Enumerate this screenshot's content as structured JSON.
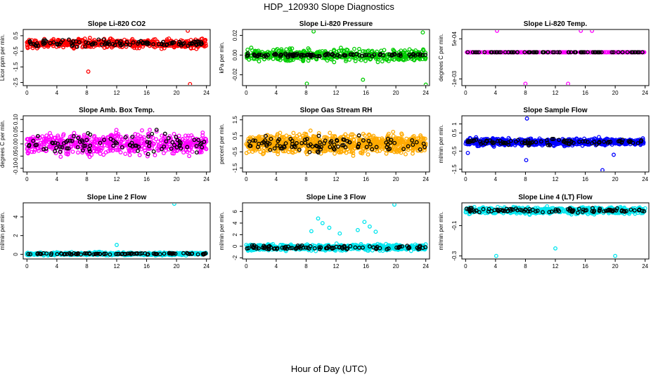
{
  "title": "HDP_120930  Slope Diagnostics",
  "xlabel": "Hour of Day (UTC)",
  "chart_data": [
    {
      "type": "scatter",
      "title": "Slope Li-820 CO2",
      "ylabel": "Licor ppm per min.",
      "color": "#ff0000",
      "ylim": [
        -2.7,
        0.9
      ],
      "yticks": [
        {
          "v": -2.5,
          "label": "-2.5"
        },
        {
          "v": -1.5,
          "label": "-1.5"
        },
        {
          "v": -0.5,
          "label": "-0.5"
        },
        {
          "v": 0.5,
          "label": "0.5"
        }
      ],
      "xlim": [
        -0.5,
        24.5
      ],
      "xticks": [
        0,
        4,
        8,
        12,
        16,
        20,
        24
      ],
      "bulk_center": 0.0,
      "bulk_spread": 0.27,
      "bulk_n": 500,
      "dark_n": 100,
      "dark_spread": 0.2,
      "outliers": [
        {
          "x": 8.2,
          "y": -1.8
        },
        {
          "x": 21.5,
          "y": 0.82
        },
        {
          "x": 21.8,
          "y": -2.6
        }
      ]
    },
    {
      "type": "scatter",
      "title": "Slope Li-820 Pressure",
      "ylabel": "kPa per min.",
      "color": "#00cc00",
      "ylim": [
        -0.031,
        0.026
      ],
      "yticks": [
        {
          "v": -0.02,
          "label": "-0.02"
        },
        {
          "v": 0.0,
          "label": "0.00"
        },
        {
          "v": 0.02,
          "label": "0.02"
        }
      ],
      "xlim": [
        -0.5,
        24.5
      ],
      "xticks": [
        0,
        4,
        8,
        12,
        16,
        20,
        24
      ],
      "bulk_center": 0.0,
      "bulk_spread": 0.006,
      "bulk_n": 450,
      "dark_n": 110,
      "dark_spread": 0.0015,
      "outliers": [
        {
          "x": 8.1,
          "y": -0.029
        },
        {
          "x": 15.6,
          "y": -0.025
        },
        {
          "x": 24.0,
          "y": -0.03
        },
        {
          "x": 9.0,
          "y": 0.024
        },
        {
          "x": 23.6,
          "y": 0.023
        }
      ]
    },
    {
      "type": "scatter",
      "title": "Slope Li-820 Temp.",
      "ylabel": "degrees C per min.",
      "color": "#ff00ff",
      "ylim": [
        -0.00125,
        0.00085
      ],
      "yticks": [
        {
          "v": -0.001,
          "label": "-1e-03"
        },
        {
          "v": 0.0005,
          "label": "5e-04"
        }
      ],
      "xlim": [
        -0.5,
        24.5
      ],
      "xticks": [
        0,
        4,
        8,
        12,
        16,
        20,
        24
      ],
      "bulk_center": 0.0,
      "bulk_spread": 0.0,
      "bulk_n": 300,
      "dark_n": 80,
      "dark_spread": 0.0,
      "outliers": [
        {
          "x": 4.2,
          "y": 0.0008
        },
        {
          "x": 8.0,
          "y": -0.00118
        },
        {
          "x": 13.7,
          "y": -0.00118
        },
        {
          "x": 16.9,
          "y": 0.0008
        },
        {
          "x": 15.4,
          "y": 0.0008
        }
      ]
    },
    {
      "type": "scatter",
      "title": "Slope Amb. Box Temp.",
      "ylabel": "degrees C per min.",
      "color": "#ff00ff",
      "ylim": [
        -0.115,
        0.115
      ],
      "yticks": [
        {
          "v": -0.1,
          "label": "-0.10"
        },
        {
          "v": -0.05,
          "label": "-0.05"
        },
        {
          "v": 0.0,
          "label": "0.00"
        },
        {
          "v": 0.05,
          "label": "0.05"
        },
        {
          "v": 0.1,
          "label": "0.10"
        }
      ],
      "xlim": [
        -0.5,
        24.5
      ],
      "xticks": [
        0,
        4,
        8,
        12,
        16,
        20,
        24
      ],
      "bulk_center": 0.0,
      "bulk_spread": 0.04,
      "bulk_n": 600,
      "dark_n": 90,
      "dark_spread": 0.04,
      "outliers": []
    },
    {
      "type": "scatter",
      "title": "Slope Gas Stream RH",
      "ylabel": "percent per min.",
      "color": "#ffaa00",
      "ylim": [
        -1.75,
        1.75
      ],
      "yticks": [
        {
          "v": -1.5,
          "label": "-1.5"
        },
        {
          "v": -0.5,
          "label": "-0.5"
        },
        {
          "v": 0.5,
          "label": "0.5"
        },
        {
          "v": 1.5,
          "label": "1.5"
        }
      ],
      "xlim": [
        -0.5,
        24.5
      ],
      "xticks": [
        0,
        4,
        8,
        12,
        16,
        20,
        24
      ],
      "bulk_center": 0.0,
      "bulk_spread": 0.55,
      "bulk_n": 900,
      "dark_n": 100,
      "dark_spread": 0.5,
      "outliers": []
    },
    {
      "type": "scatter",
      "title": "Slope Sample Flow",
      "ylabel": "ml/min per min.",
      "color": "#0000ff",
      "ylim": [
        -1.65,
        1.45
      ],
      "yticks": [
        {
          "v": -1.5,
          "label": "-1.5"
        },
        {
          "v": -0.5,
          "label": "-0.5"
        },
        {
          "v": 0.5,
          "label": "0.5"
        },
        {
          "v": 1.0,
          "label": "1"
        }
      ],
      "xlim": [
        -0.5,
        24.5
      ],
      "xticks": [
        0,
        4,
        8,
        12,
        16,
        20,
        24
      ],
      "bulk_center": 0.0,
      "bulk_spread": 0.18,
      "bulk_n": 700,
      "dark_n": 90,
      "dark_spread": 0.15,
      "outliers": [
        {
          "x": 0.3,
          "y": -0.6
        },
        {
          "x": 8.2,
          "y": 1.3
        },
        {
          "x": 18.3,
          "y": -1.55
        },
        {
          "x": 8.1,
          "y": -1.0
        },
        {
          "x": 19.8,
          "y": -0.7
        }
      ]
    },
    {
      "type": "scatter",
      "title": "Slope Line 2 Flow",
      "ylabel": "ml/min per min.",
      "color": "#00e5ee",
      "ylim": [
        -0.5,
        5.5
      ],
      "yticks": [
        {
          "v": 0,
          "label": "0"
        },
        {
          "v": 2,
          "label": "2"
        },
        {
          "v": 4,
          "label": "4"
        }
      ],
      "xlim": [
        -0.5,
        24.5
      ],
      "xticks": [
        0,
        4,
        8,
        12,
        16,
        20,
        24
      ],
      "bulk_center": 0.05,
      "bulk_spread": 0.15,
      "bulk_n": 500,
      "dark_n": 100,
      "dark_spread": 0.08,
      "outliers": [
        {
          "x": 19.7,
          "y": 5.4
        },
        {
          "x": 12.0,
          "y": 1.0
        }
      ]
    },
    {
      "type": "scatter",
      "title": "Slope Line 3 Flow",
      "ylabel": "ml/min per min.",
      "color": "#00e5ee",
      "ylim": [
        -2.2,
        7.5
      ],
      "yticks": [
        {
          "v": -2,
          "label": "-2"
        },
        {
          "v": 0,
          "label": "0"
        },
        {
          "v": 2,
          "label": "2"
        },
        {
          "v": 4,
          "label": "4"
        },
        {
          "v": 6,
          "label": "6"
        }
      ],
      "xlim": [
        -0.5,
        24.5
      ],
      "xticks": [
        0,
        4,
        8,
        12,
        16,
        20,
        24
      ],
      "bulk_center": -0.2,
      "bulk_spread": 0.5,
      "bulk_n": 600,
      "dark_n": 100,
      "dark_spread": 0.35,
      "outliers": [
        {
          "x": 19.8,
          "y": 7.2
        },
        {
          "x": 9.6,
          "y": 4.8
        },
        {
          "x": 10.2,
          "y": 4.0
        },
        {
          "x": 11.1,
          "y": 3.2
        },
        {
          "x": 15.8,
          "y": 4.2
        },
        {
          "x": 16.5,
          "y": 3.4
        },
        {
          "x": 8.7,
          "y": 2.6
        },
        {
          "x": 12.5,
          "y": 2.2
        },
        {
          "x": 14.9,
          "y": 2.8
        },
        {
          "x": 17.3,
          "y": 2.5
        }
      ]
    },
    {
      "type": "scatter",
      "title": "Slope Line 4 (LT) Flow",
      "ylabel": "ml/min per min.",
      "color": "#00e5ee",
      "ylim": [
        -0.32,
        0.05
      ],
      "yticks": [
        {
          "v": -0.3,
          "label": "-0.3"
        },
        {
          "v": -0.1,
          "label": "-0.1"
        }
      ],
      "xlim": [
        -0.5,
        24.5
      ],
      "xticks": [
        0,
        4,
        8,
        12,
        16,
        20,
        24
      ],
      "bulk_center": 0.0,
      "bulk_spread": 0.02,
      "bulk_n": 600,
      "dark_n": 100,
      "dark_spread": 0.015,
      "outliers": [
        {
          "x": 4.1,
          "y": -0.3
        },
        {
          "x": 12.0,
          "y": -0.25
        },
        {
          "x": 20.0,
          "y": -0.3
        }
      ]
    }
  ]
}
